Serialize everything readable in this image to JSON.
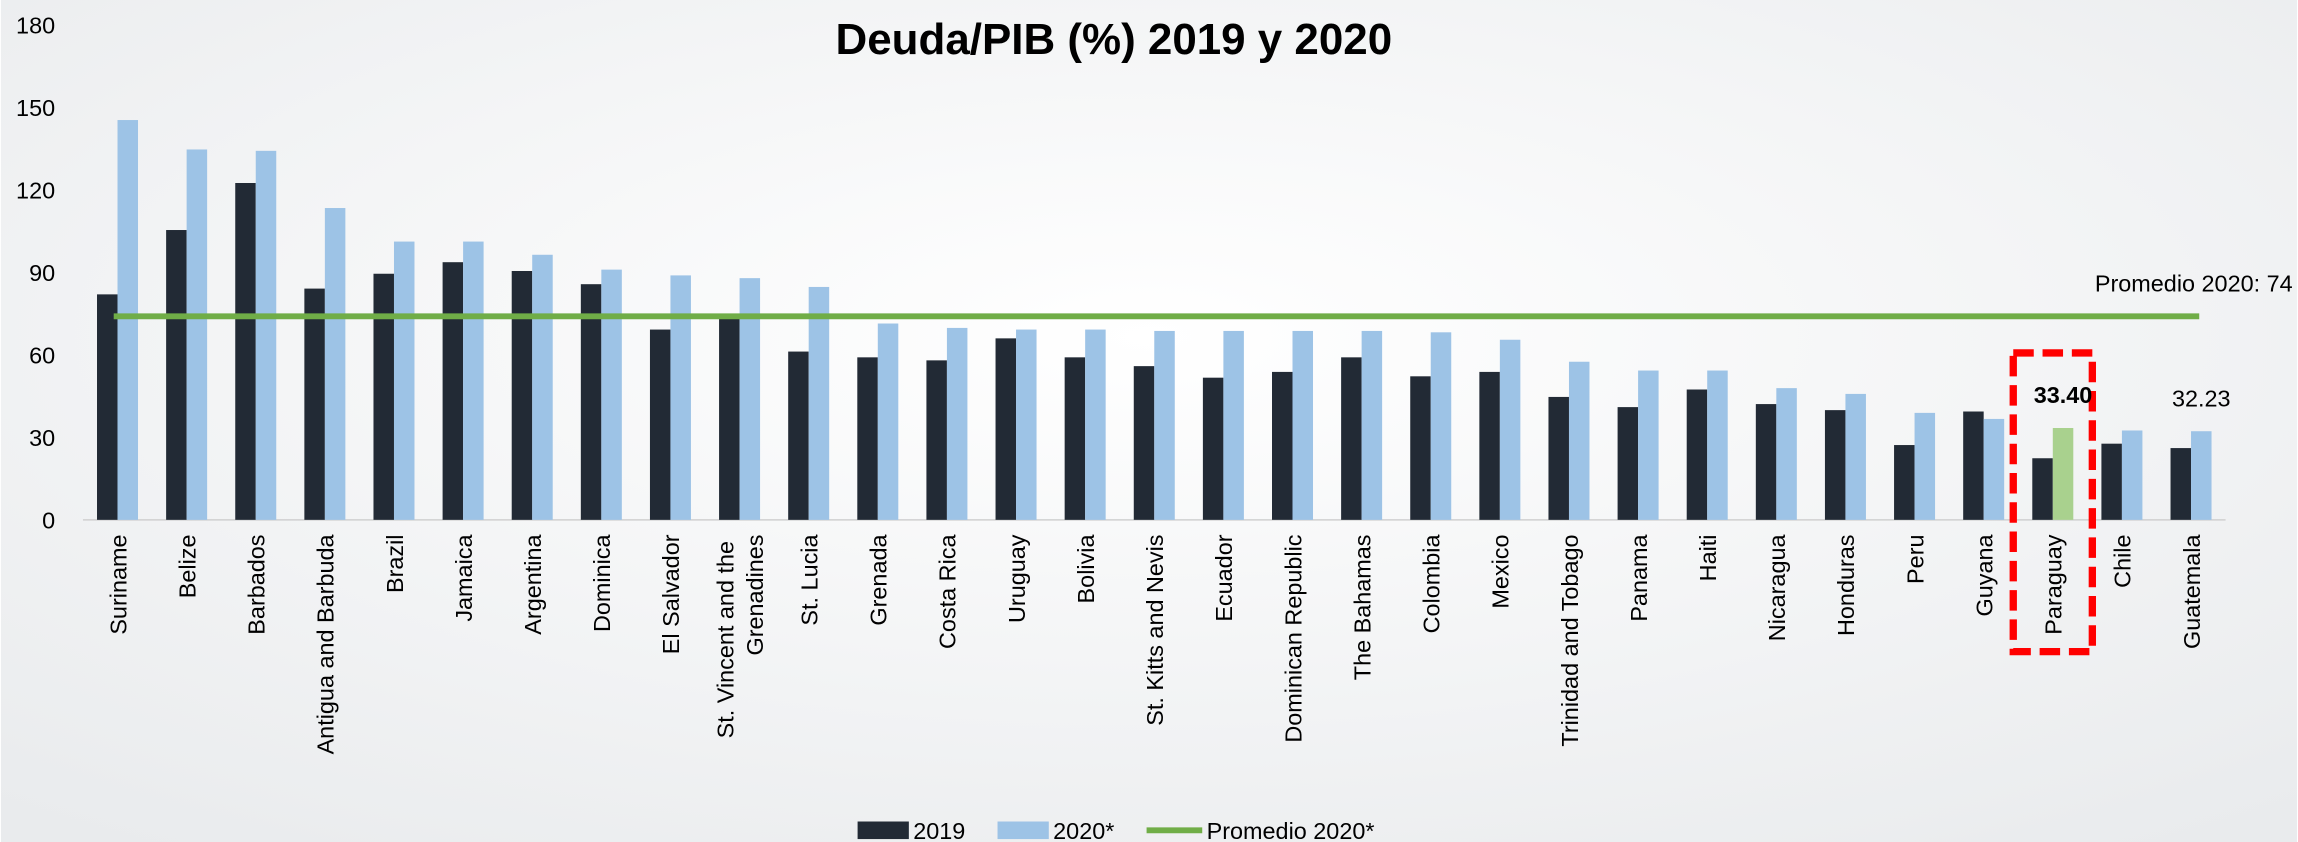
{
  "chart_data": {
    "type": "bar",
    "title": "Deuda/PIB (%) 2019 y 2020",
    "categories": [
      "Suriname",
      "Belize",
      "Barbados",
      "Antigua and Barbuda",
      "Brazil",
      "Jamaica",
      "Argentina",
      "Dominica",
      "El Salvador",
      "St. Vincent and the Grenadines",
      "St. Lucia",
      "Grenada",
      "Costa Rica",
      "Uruguay",
      "Bolivia",
      "St. Kitts and Nevis",
      "Ecuador",
      "Dominican Republic",
      "The Bahamas",
      "Colombia",
      "Mexico",
      "Trinidad and Tobago",
      "Panama",
      "Haiti",
      "Nicaragua",
      "Honduras",
      "Peru",
      "Guyana",
      "Paraguay",
      "Chile",
      "Guatemala"
    ],
    "series": [
      {
        "name": "2019",
        "color": "#222a35",
        "values": [
          82,
          105.4,
          122.5,
          84.1,
          89.5,
          93.7,
          90.5,
          85.7,
          69.2,
          74.5,
          61.2,
          59.1,
          58,
          66,
          59.1,
          55.9,
          51.7,
          53.8,
          59.1,
          52.2,
          53.8,
          44.7,
          41,
          47.4,
          42.1,
          39.9,
          27.2,
          39.4,
          22.4,
          27.7,
          26.1
        ]
      },
      {
        "name": "2020*",
        "color": "#9dc3e6",
        "values": [
          145.4,
          134.7,
          134.2,
          113.4,
          101.2,
          101.2,
          96.4,
          91,
          88.9,
          87.9,
          84.7,
          71.4,
          69.8,
          69.2,
          69.2,
          68.7,
          68.7,
          68.7,
          68.7,
          68.2,
          65.5,
          57.5,
          54.3,
          54.3,
          47.9,
          45.8,
          38.9,
          36.7,
          33.4,
          32.5,
          32.23
        ],
        "colors": [
          "#9dc3e6",
          "#9dc3e6",
          "#9dc3e6",
          "#9dc3e6",
          "#9dc3e6",
          "#9dc3e6",
          "#9dc3e6",
          "#9dc3e6",
          "#9dc3e6",
          "#9dc3e6",
          "#9dc3e6",
          "#9dc3e6",
          "#9dc3e6",
          "#9dc3e6",
          "#9dc3e6",
          "#9dc3e6",
          "#9dc3e6",
          "#9dc3e6",
          "#9dc3e6",
          "#9dc3e6",
          "#9dc3e6",
          "#9dc3e6",
          "#9dc3e6",
          "#9dc3e6",
          "#9dc3e6",
          "#9dc3e6",
          "#9dc3e6",
          "#9dc3e6",
          "#a9d18e",
          "#9dc3e6",
          "#9dc3e6"
        ],
        "value_labels": [
          null,
          null,
          null,
          null,
          null,
          null,
          null,
          null,
          null,
          null,
          null,
          null,
          null,
          null,
          null,
          null,
          null,
          null,
          null,
          null,
          null,
          null,
          null,
          null,
          null,
          null,
          null,
          null,
          "33.40",
          null,
          "32.23"
        ]
      }
    ],
    "reference_line": {
      "name": "Promedio 2020*",
      "value": 74,
      "color": "#70ad47",
      "label": "Promedio 2020: 74"
    },
    "ylim": [
      0,
      180
    ],
    "yticks": [
      0,
      30,
      60,
      90,
      120,
      150,
      180
    ],
    "grid": false,
    "legend": "bottom"
  }
}
